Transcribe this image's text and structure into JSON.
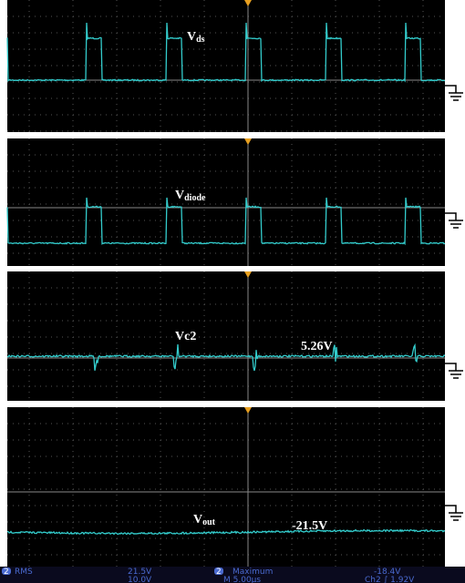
{
  "panels": [
    {
      "label_main": "V",
      "label_sub": "ds"
    },
    {
      "label_main": "V",
      "label_sub": "diode"
    },
    {
      "label_main": "V",
      "label_sub": "c2",
      "reading": "5.26V"
    },
    {
      "label_main": "V",
      "label_sub": "out",
      "reading": "-21.5V"
    }
  ],
  "status_bar": {
    "channel": "2",
    "measure1": "RMS",
    "value1": "21.5V",
    "measure2": "Maximum",
    "value2": "-18.4V",
    "scale": "10.0V",
    "timebase": "M 5.00µs",
    "trigger": "Ch2 ∫ 1.92V"
  }
}
